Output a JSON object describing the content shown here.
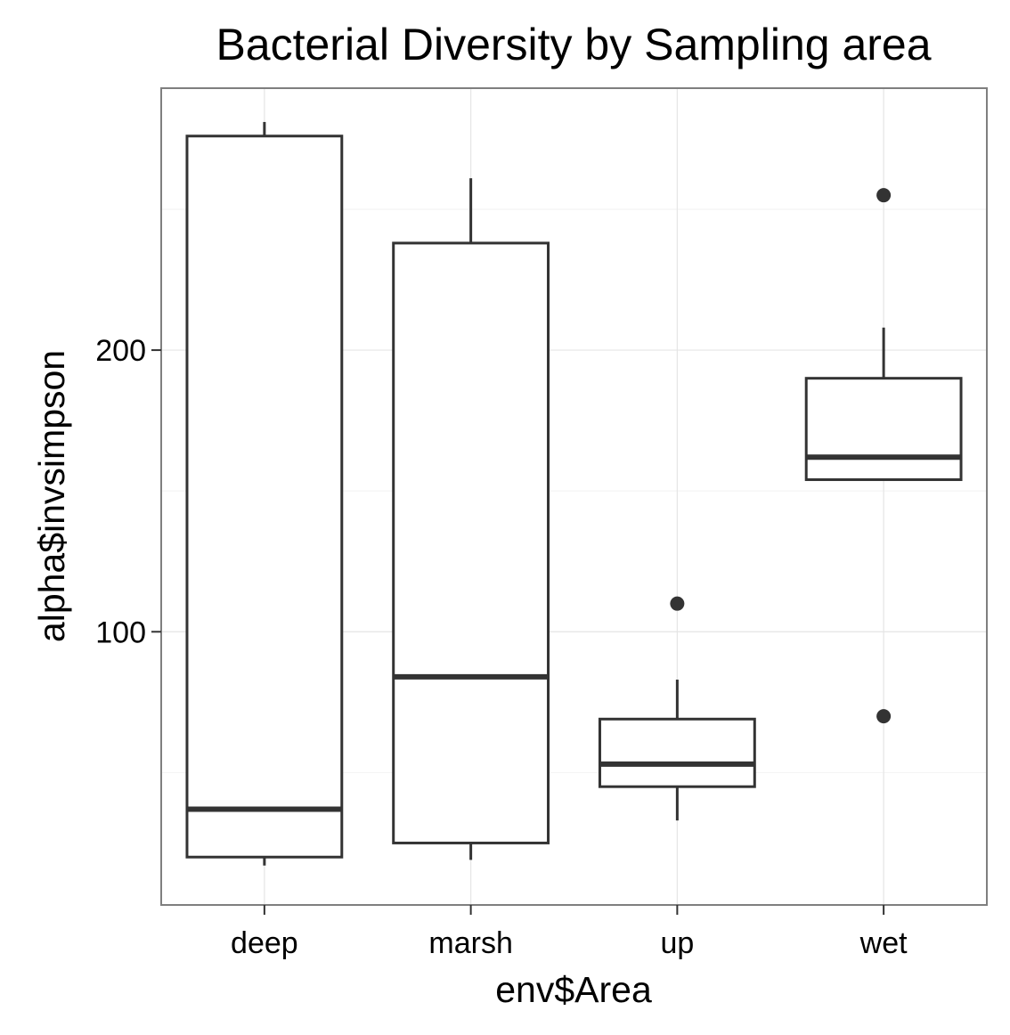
{
  "chart_data": {
    "type": "box",
    "title": "Bacterial Diversity by Sampling area",
    "xlabel": "env$Area",
    "ylabel": "alpha$invsimpson",
    "categories": [
      "deep",
      "marsh",
      "up",
      "wet"
    ],
    "yticks": [
      100,
      200
    ],
    "ylim": [
      3,
      293
    ],
    "grid": true,
    "boxes": [
      {
        "category": "deep",
        "whisker_low": 17,
        "q1": 20,
        "median": 37,
        "q3": 276,
        "whisker_high": 281,
        "outliers": []
      },
      {
        "category": "marsh",
        "whisker_low": 19,
        "q1": 25,
        "median": 84,
        "q3": 238,
        "whisker_high": 261,
        "outliers": []
      },
      {
        "category": "up",
        "whisker_low": 33,
        "q1": 45,
        "median": 53,
        "q3": 69,
        "whisker_high": 83,
        "outliers": [
          110
        ]
      },
      {
        "category": "wet",
        "whisker_low": 154,
        "q1": 154,
        "median": 162,
        "q3": 190,
        "whisker_high": 208,
        "outliers": [
          255,
          70
        ]
      }
    ]
  }
}
